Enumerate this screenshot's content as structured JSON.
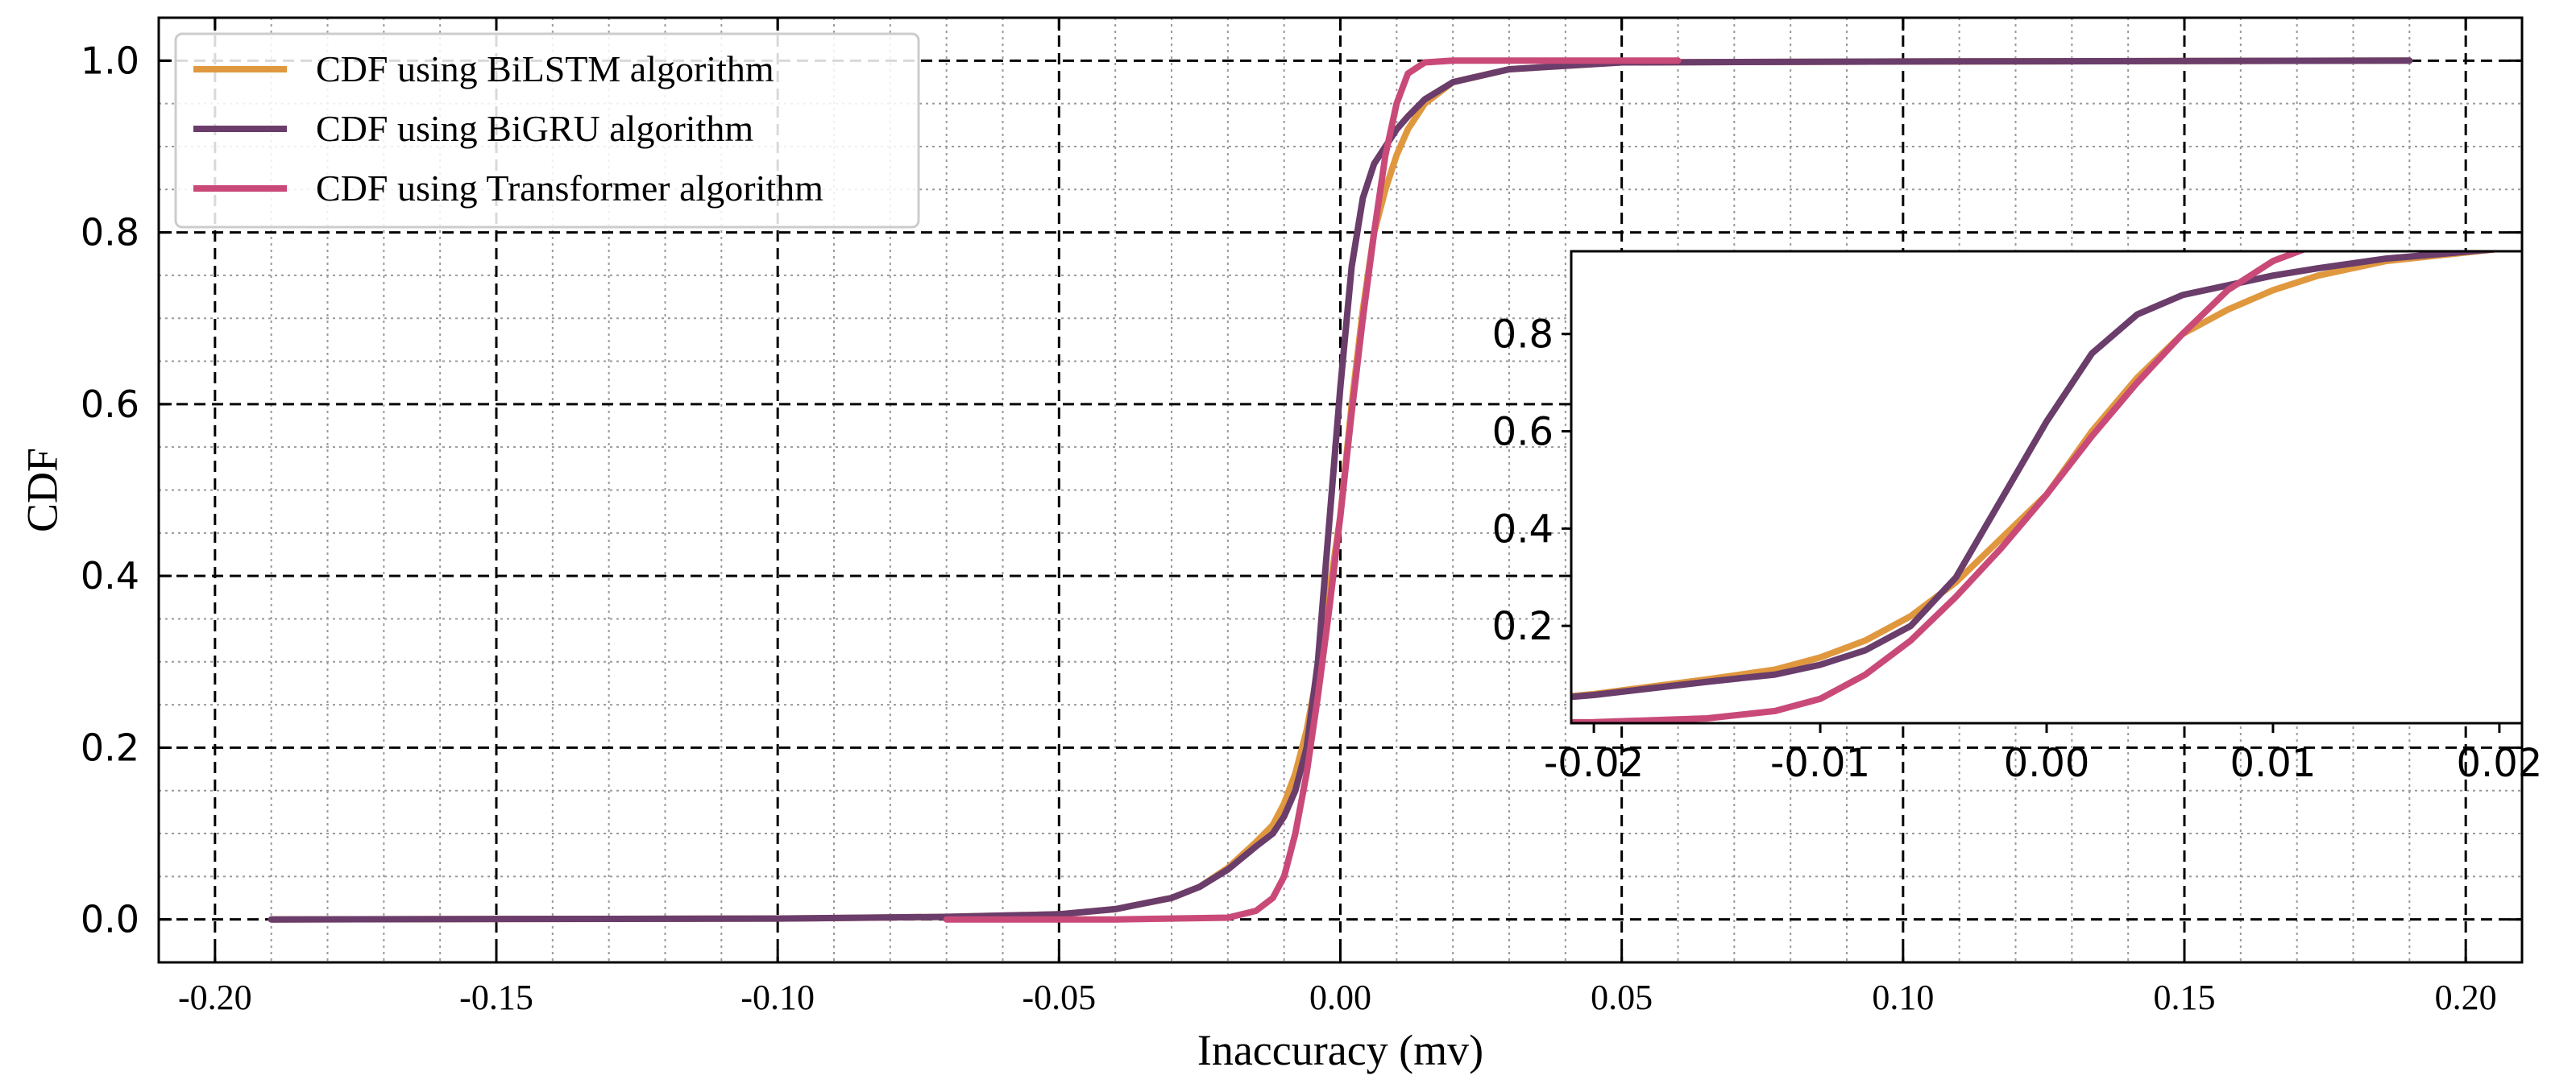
{
  "chart_data": {
    "type": "line",
    "title": "",
    "xlabel": "Inaccuracy (mv)",
    "ylabel": "CDF",
    "xlim": [
      -0.21,
      0.21
    ],
    "ylim": [
      -0.05,
      1.05
    ],
    "xticks": [
      -0.2,
      -0.15,
      -0.1,
      -0.05,
      0.0,
      0.05,
      0.1,
      0.15,
      0.2
    ],
    "xtick_labels": [
      "-0.20",
      "-0.15",
      "-0.10",
      "-0.05",
      "0.00",
      "0.05",
      "0.10",
      "0.15",
      "0.20"
    ],
    "yticks": [
      0.0,
      0.2,
      0.4,
      0.6,
      0.8,
      1.0
    ],
    "ytick_labels": [
      "0.0",
      "0.2",
      "0.4",
      "0.6",
      "0.8",
      "1.0"
    ],
    "grid": "major dashed, minor dotted",
    "legend_position": "top-left",
    "series": [
      {
        "name": "CDF using BiLSTM algorithm",
        "color": "#e0983f",
        "x": [
          -0.19,
          -0.1,
          -0.07,
          -0.05,
          -0.04,
          -0.03,
          -0.025,
          -0.02,
          -0.015,
          -0.012,
          -0.01,
          -0.008,
          -0.006,
          -0.004,
          -0.002,
          0.0,
          0.002,
          0.004,
          0.006,
          0.008,
          0.01,
          0.012,
          0.015,
          0.02,
          0.03,
          0.05,
          0.1,
          0.19
        ],
        "y": [
          0.0,
          0.001,
          0.003,
          0.006,
          0.012,
          0.025,
          0.038,
          0.06,
          0.09,
          0.11,
          0.135,
          0.17,
          0.22,
          0.29,
          0.38,
          0.47,
          0.6,
          0.71,
          0.8,
          0.85,
          0.89,
          0.92,
          0.95,
          0.975,
          0.99,
          0.998,
          0.999,
          1.0
        ]
      },
      {
        "name": "CDF using BiGRU algorithm",
        "color": "#6a3d6b",
        "x": [
          -0.19,
          -0.1,
          -0.07,
          -0.05,
          -0.04,
          -0.03,
          -0.025,
          -0.02,
          -0.015,
          -0.012,
          -0.01,
          -0.008,
          -0.006,
          -0.004,
          -0.002,
          0.0,
          0.002,
          0.004,
          0.006,
          0.008,
          0.01,
          0.012,
          0.015,
          0.02,
          0.03,
          0.05,
          0.1,
          0.19
        ],
        "y": [
          0.0,
          0.001,
          0.003,
          0.006,
          0.012,
          0.025,
          0.038,
          0.058,
          0.085,
          0.1,
          0.12,
          0.15,
          0.2,
          0.3,
          0.46,
          0.62,
          0.76,
          0.84,
          0.88,
          0.9,
          0.92,
          0.935,
          0.955,
          0.975,
          0.99,
          0.998,
          0.999,
          1.0
        ]
      },
      {
        "name": "CDF using Transformer algorithm",
        "color": "#c94a78",
        "x": [
          -0.07,
          -0.04,
          -0.02,
          -0.015,
          -0.012,
          -0.01,
          -0.008,
          -0.006,
          -0.004,
          -0.002,
          0.0,
          0.002,
          0.004,
          0.006,
          0.008,
          0.01,
          0.012,
          0.015,
          0.02,
          0.06
        ],
        "y": [
          0.0,
          0.0,
          0.002,
          0.01,
          0.025,
          0.05,
          0.1,
          0.17,
          0.26,
          0.36,
          0.47,
          0.59,
          0.7,
          0.8,
          0.89,
          0.95,
          0.985,
          0.998,
          1.0,
          1.0
        ]
      }
    ],
    "inset": {
      "type": "line",
      "xlim": [
        -0.021,
        0.021
      ],
      "ylim": [
        0.0,
        0.97
      ],
      "xticks": [
        -0.02,
        -0.01,
        0.0,
        0.01,
        0.02
      ],
      "xtick_labels": [
        "-0.02",
        "-0.01",
        "0.00",
        "0.01",
        "0.02"
      ],
      "yticks": [
        0.2,
        0.4,
        0.6,
        0.8
      ],
      "ytick_labels": [
        "0.2",
        "0.4",
        "0.6",
        "0.8"
      ],
      "grid": "off"
    }
  }
}
